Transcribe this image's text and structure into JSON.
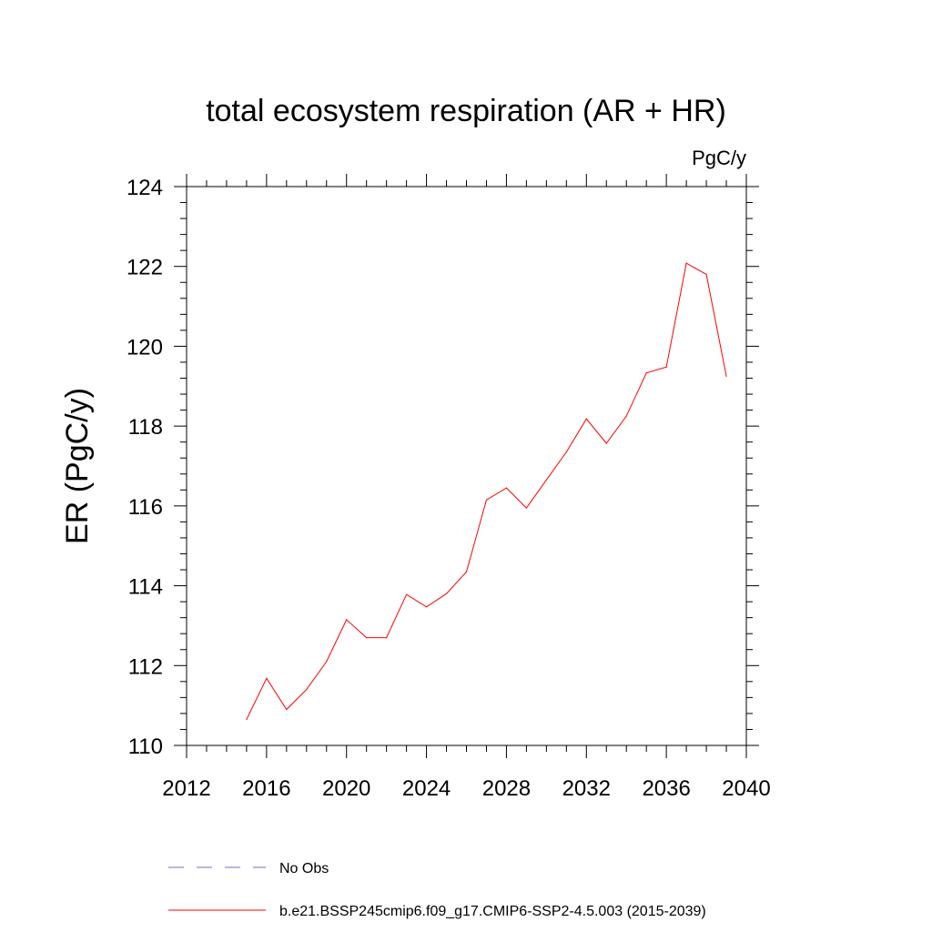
{
  "chart_data": {
    "type": "line",
    "title": "total ecosystem respiration (AR + HR)",
    "units": "PgC/y",
    "xlabel": "",
    "ylabel": "ER  (PgC/y)",
    "xlim": [
      2012,
      2040
    ],
    "ylim": [
      110,
      124
    ],
    "x_ticks": [
      2012,
      2016,
      2020,
      2024,
      2028,
      2032,
      2036,
      2040
    ],
    "y_ticks": [
      110,
      112,
      114,
      116,
      118,
      120,
      122,
      124
    ],
    "x_minor_step": 1,
    "y_minor_step": 0.4,
    "grid": false,
    "series": [
      {
        "name": "b.e21.BSSP245cmip6.f09_g17.CMIP6-SSP2-4.5.003 (2015-2039)",
        "color": "#ff0000",
        "style": "solid",
        "x": [
          2015,
          2016,
          2017,
          2018,
          2019,
          2020,
          2021,
          2022,
          2023,
          2024,
          2025,
          2026,
          2027,
          2028,
          2029,
          2030,
          2031,
          2032,
          2033,
          2034,
          2035,
          2036,
          2037,
          2038,
          2039
        ],
        "values": [
          110.65,
          111.68,
          110.9,
          111.4,
          112.1,
          113.15,
          112.7,
          112.7,
          113.78,
          113.47,
          113.8,
          114.35,
          116.15,
          116.45,
          115.95,
          116.65,
          117.35,
          118.18,
          117.57,
          118.25,
          119.33,
          119.48,
          122.08,
          121.8,
          119.25
        ]
      }
    ],
    "legend": [
      {
        "label": "No Obs",
        "color": "#6b6bd6",
        "style": "dashed"
      },
      {
        "label": "b.e21.BSSP245cmip6.f09_g17.CMIP6-SSP2-4.5.003 (2015-2039)",
        "color": "#ff0000",
        "style": "solid"
      }
    ]
  }
}
